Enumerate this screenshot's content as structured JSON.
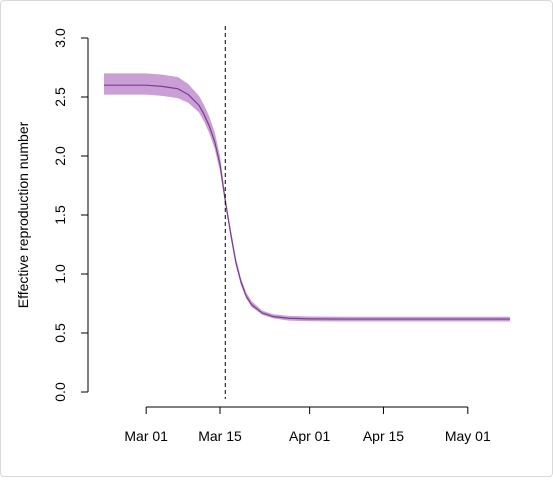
{
  "chart_data": {
    "type": "line",
    "title": "",
    "xlabel": "",
    "ylabel": "Effective reproduction number",
    "ylim": [
      0,
      3
    ],
    "y_ticks": [
      "0.0",
      "0.5",
      "1.0",
      "1.5",
      "2.0",
      "2.5",
      "3.0"
    ],
    "x_ticks": [
      {
        "date": "2020-03-01",
        "label": "Mar 01"
      },
      {
        "date": "2020-03-15",
        "label": "Mar 15"
      },
      {
        "date": "2020-04-01",
        "label": "Apr 01"
      },
      {
        "date": "2020-04-15",
        "label": "Apr 15"
      },
      {
        "date": "2020-05-01",
        "label": "May 01"
      }
    ],
    "xlim": [
      "2020-02-22",
      "2020-05-09"
    ],
    "intervention_line": {
      "date": "2020-03-16",
      "style": "dashed"
    },
    "series": [
      {
        "line_color": "#7b3d8f",
        "band_color": "#c99fd6",
        "x": [
          "2020-02-22",
          "2020-02-27",
          "2020-03-01",
          "2020-03-04",
          "2020-03-07",
          "2020-03-09",
          "2020-03-11",
          "2020-03-12",
          "2020-03-13",
          "2020-03-14",
          "2020-03-15",
          "2020-03-16",
          "2020-03-17",
          "2020-03-18",
          "2020-03-19",
          "2020-03-20",
          "2020-03-21",
          "2020-03-23",
          "2020-03-25",
          "2020-03-28",
          "2020-04-01",
          "2020-04-08",
          "2020-04-15",
          "2020-04-22",
          "2020-05-01",
          "2020-05-09"
        ],
        "values": [
          2.6,
          2.6,
          2.6,
          2.59,
          2.57,
          2.52,
          2.43,
          2.35,
          2.25,
          2.12,
          1.93,
          1.62,
          1.35,
          1.1,
          0.93,
          0.81,
          0.74,
          0.67,
          0.64,
          0.625,
          0.62,
          0.618,
          0.618,
          0.618,
          0.618,
          0.618
        ],
        "lower": [
          2.52,
          2.52,
          2.52,
          2.51,
          2.49,
          2.45,
          2.37,
          2.29,
          2.19,
          2.06,
          1.87,
          1.59,
          1.31,
          1.07,
          0.9,
          0.79,
          0.72,
          0.655,
          0.625,
          0.605,
          0.6,
          0.598,
          0.598,
          0.598,
          0.598,
          0.598
        ],
        "upper": [
          2.7,
          2.7,
          2.7,
          2.69,
          2.67,
          2.61,
          2.51,
          2.43,
          2.33,
          2.2,
          2.0,
          1.66,
          1.39,
          1.14,
          0.96,
          0.84,
          0.77,
          0.69,
          0.66,
          0.645,
          0.64,
          0.638,
          0.638,
          0.638,
          0.638,
          0.638
        ]
      }
    ]
  }
}
